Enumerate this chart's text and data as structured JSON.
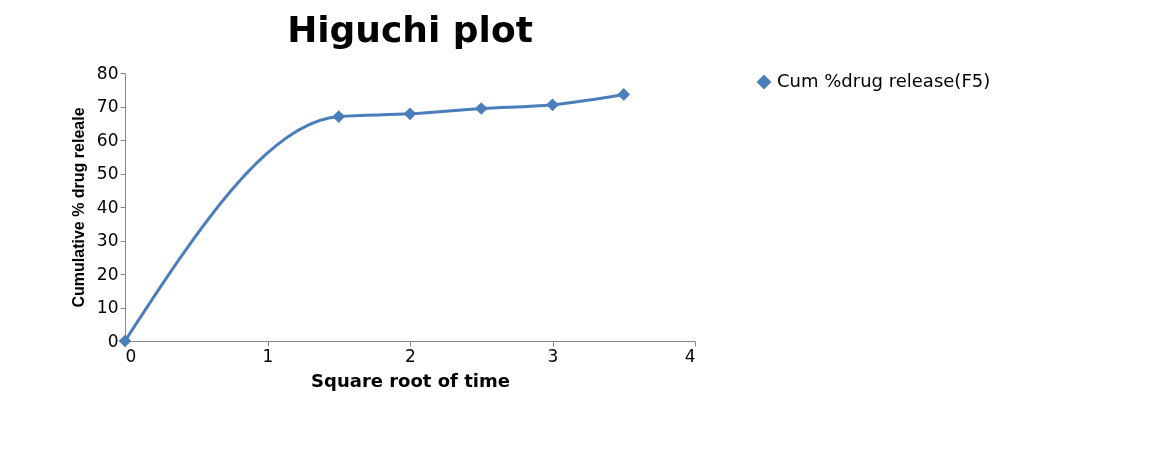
{
  "chart_data": {
    "type": "line",
    "title": "Higuchi plot",
    "xlabel": "Square root of time",
    "ylabel": "Cumulative % drug releale",
    "x": [
      0,
      1.5,
      2,
      2.5,
      3,
      3.5
    ],
    "series": [
      {
        "name": "Cum %drug release(F5)",
        "color": "#4a7ebb",
        "values": [
          0,
          67,
          67.8,
          69.4,
          70.5,
          73.6
        ]
      }
    ],
    "xlim": [
      0,
      4
    ],
    "xticks": [
      0,
      1,
      2,
      3,
      4
    ],
    "ylim": [
      0,
      80
    ],
    "yticks": [
      0,
      10,
      20,
      30,
      40,
      50,
      60,
      70,
      80
    ],
    "grid": false,
    "legend": "right",
    "marker": "diamond",
    "line_style": "solid"
  }
}
